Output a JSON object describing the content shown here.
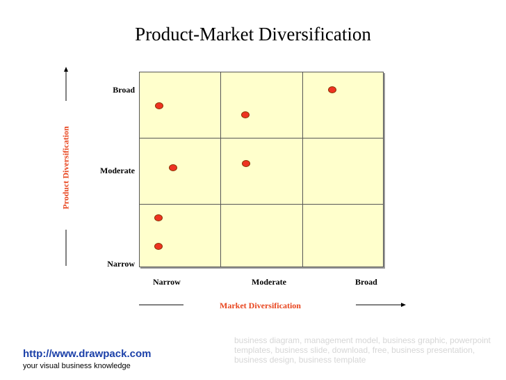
{
  "title": "Product-Market Diversification",
  "y_axis": {
    "title": "Product Diversification",
    "levels": [
      "Broad",
      "Moderate",
      "Narrow"
    ]
  },
  "x_axis": {
    "title": "Market Diversification",
    "levels": [
      "Narrow",
      "Moderate",
      "Broad"
    ]
  },
  "grid_color": "#ffffcc",
  "accent_color": "#e8451e",
  "dot_color": "#ee3322",
  "footer": {
    "url": "http://www.drawpack.com",
    "tagline": "your visual business knowledge",
    "watermark": "business diagram, management model, business graphic, powerpoint templates, business slide, download, free, business presentation, business design, business template"
  }
}
